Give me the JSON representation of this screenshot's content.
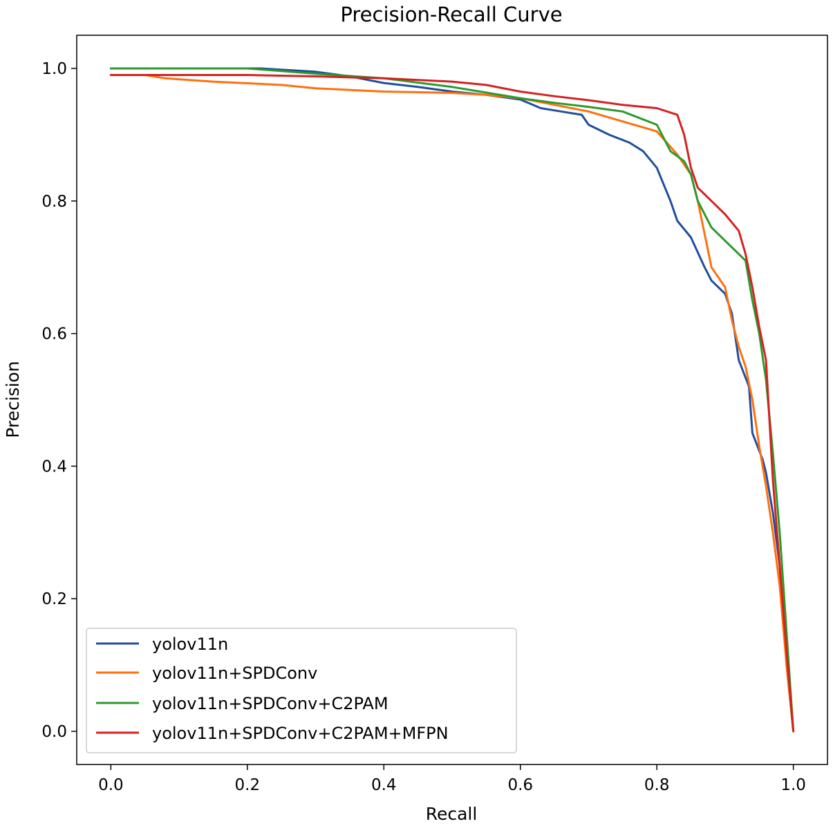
{
  "chart_data": {
    "type": "line",
    "title": "Precision-Recall Curve",
    "xlabel": "Recall",
    "ylabel": "Precision",
    "xlim": [
      -0.05,
      1.05
    ],
    "ylim": [
      -0.05,
      1.05
    ],
    "xticks": [
      0.0,
      0.2,
      0.4,
      0.6,
      0.8,
      1.0
    ],
    "yticks": [
      0.0,
      0.2,
      0.4,
      0.6,
      0.8,
      1.0
    ],
    "xtick_labels": [
      "0.0",
      "0.2",
      "0.4",
      "0.6",
      "0.8",
      "1.0"
    ],
    "ytick_labels": [
      "0.0",
      "0.2",
      "0.4",
      "0.6",
      "0.8",
      "1.0"
    ],
    "grid": false,
    "legend_position": "lower-left",
    "series": [
      {
        "name": "yolov11n",
        "color": "#1f4e9c",
        "points": [
          [
            0.0,
            1.0
          ],
          [
            0.22,
            1.0
          ],
          [
            0.3,
            0.995
          ],
          [
            0.35,
            0.988
          ],
          [
            0.4,
            0.978
          ],
          [
            0.45,
            0.972
          ],
          [
            0.5,
            0.965
          ],
          [
            0.55,
            0.96
          ],
          [
            0.6,
            0.953
          ],
          [
            0.63,
            0.94
          ],
          [
            0.66,
            0.935
          ],
          [
            0.69,
            0.93
          ],
          [
            0.7,
            0.915
          ],
          [
            0.73,
            0.9
          ],
          [
            0.76,
            0.888
          ],
          [
            0.78,
            0.875
          ],
          [
            0.8,
            0.85
          ],
          [
            0.82,
            0.8
          ],
          [
            0.83,
            0.77
          ],
          [
            0.85,
            0.745
          ],
          [
            0.87,
            0.7
          ],
          [
            0.88,
            0.68
          ],
          [
            0.9,
            0.66
          ],
          [
            0.91,
            0.63
          ],
          [
            0.92,
            0.56
          ],
          [
            0.935,
            0.52
          ],
          [
            0.94,
            0.45
          ],
          [
            0.955,
            0.41
          ],
          [
            0.96,
            0.39
          ],
          [
            0.97,
            0.33
          ],
          [
            0.98,
            0.25
          ],
          [
            0.99,
            0.1
          ],
          [
            1.0,
            0.0
          ]
        ]
      },
      {
        "name": "yolov11n+SPDConv",
        "color": "#ff6f0e",
        "points": [
          [
            0.0,
            0.99
          ],
          [
            0.05,
            0.99
          ],
          [
            0.08,
            0.985
          ],
          [
            0.15,
            0.98
          ],
          [
            0.25,
            0.975
          ],
          [
            0.3,
            0.97
          ],
          [
            0.4,
            0.965
          ],
          [
            0.5,
            0.963
          ],
          [
            0.55,
            0.96
          ],
          [
            0.6,
            0.955
          ],
          [
            0.65,
            0.945
          ],
          [
            0.7,
            0.935
          ],
          [
            0.75,
            0.92
          ],
          [
            0.8,
            0.905
          ],
          [
            0.83,
            0.87
          ],
          [
            0.85,
            0.84
          ],
          [
            0.86,
            0.8
          ],
          [
            0.87,
            0.75
          ],
          [
            0.88,
            0.7
          ],
          [
            0.9,
            0.67
          ],
          [
            0.91,
            0.62
          ],
          [
            0.92,
            0.58
          ],
          [
            0.93,
            0.55
          ],
          [
            0.94,
            0.5
          ],
          [
            0.95,
            0.43
          ],
          [
            0.96,
            0.37
          ],
          [
            0.97,
            0.3
          ],
          [
            0.98,
            0.22
          ],
          [
            0.99,
            0.1
          ],
          [
            1.0,
            0.0
          ]
        ]
      },
      {
        "name": "yolov11n+SPDConv+C2PAM",
        "color": "#2a9a2a",
        "points": [
          [
            0.0,
            1.0
          ],
          [
            0.2,
            1.0
          ],
          [
            0.3,
            0.992
          ],
          [
            0.4,
            0.985
          ],
          [
            0.5,
            0.972
          ],
          [
            0.6,
            0.955
          ],
          [
            0.65,
            0.948
          ],
          [
            0.7,
            0.942
          ],
          [
            0.75,
            0.935
          ],
          [
            0.8,
            0.915
          ],
          [
            0.82,
            0.875
          ],
          [
            0.84,
            0.86
          ],
          [
            0.85,
            0.84
          ],
          [
            0.86,
            0.8
          ],
          [
            0.88,
            0.76
          ],
          [
            0.9,
            0.74
          ],
          [
            0.92,
            0.72
          ],
          [
            0.93,
            0.71
          ],
          [
            0.94,
            0.65
          ],
          [
            0.95,
            0.6
          ],
          [
            0.96,
            0.53
          ],
          [
            0.97,
            0.42
          ],
          [
            0.98,
            0.3
          ],
          [
            0.99,
            0.15
          ],
          [
            1.0,
            0.0
          ]
        ]
      },
      {
        "name": "yolov11n+SPDConv+C2PAM+MFPN",
        "color": "#d62020",
        "points": [
          [
            0.0,
            0.99
          ],
          [
            0.2,
            0.99
          ],
          [
            0.3,
            0.988
          ],
          [
            0.4,
            0.985
          ],
          [
            0.5,
            0.98
          ],
          [
            0.55,
            0.975
          ],
          [
            0.6,
            0.965
          ],
          [
            0.65,
            0.958
          ],
          [
            0.7,
            0.952
          ],
          [
            0.75,
            0.945
          ],
          [
            0.8,
            0.94
          ],
          [
            0.83,
            0.93
          ],
          [
            0.84,
            0.9
          ],
          [
            0.85,
            0.85
          ],
          [
            0.86,
            0.82
          ],
          [
            0.88,
            0.8
          ],
          [
            0.9,
            0.78
          ],
          [
            0.92,
            0.755
          ],
          [
            0.93,
            0.72
          ],
          [
            0.94,
            0.67
          ],
          [
            0.95,
            0.61
          ],
          [
            0.96,
            0.56
          ],
          [
            0.97,
            0.38
          ],
          [
            0.98,
            0.25
          ],
          [
            0.99,
            0.12
          ],
          [
            1.0,
            0.0
          ]
        ]
      }
    ]
  }
}
